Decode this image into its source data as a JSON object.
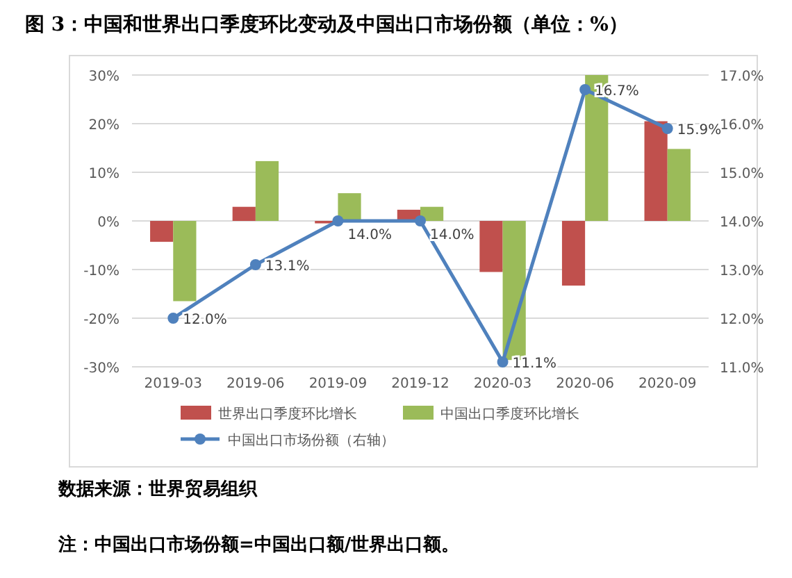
{
  "chart_data": {
    "type": "bar",
    "title": "图 3：中国和世界出口季度环比变动及中国出口市场份额（单位：%）",
    "categories": [
      "2019-03",
      "2019-06",
      "2019-09",
      "2019-12",
      "2020-03",
      "2020-06",
      "2020-09"
    ],
    "series": [
      {
        "name": "世界出口季度环比增长",
        "color": "#c0504d",
        "values": [
          -4.3,
          2.9,
          -0.5,
          2.3,
          -10.5,
          -13.3,
          20.5
        ]
      },
      {
        "name": "中国出口季度环比增长",
        "color": "#9bbb59",
        "values": [
          -16.5,
          12.3,
          5.7,
          2.9,
          -28.6,
          30,
          14.8
        ]
      },
      {
        "name": "中国出口市场份额（右轴）",
        "type": "line",
        "axis": "y2",
        "color": "#4f81bd",
        "marker": "circle",
        "values": [
          12.0,
          13.1,
          14.0,
          14.0,
          11.1,
          16.7,
          15.9
        ],
        "value_labels": [
          "12.0%",
          "13.1%",
          "14.0%",
          "14.0%",
          "11.1%",
          "16.7%",
          "15.9%"
        ]
      }
    ],
    "ylim": [
      -30,
      30
    ],
    "yticks": [
      {
        "value": -30,
        "label": "-30%"
      },
      {
        "value": -20,
        "label": "-20%"
      },
      {
        "value": -10,
        "label": "-10%"
      },
      {
        "value": 0,
        "label": "0%"
      },
      {
        "value": 10,
        "label": "10%"
      },
      {
        "value": 20,
        "label": "20%"
      },
      {
        "value": 30,
        "label": "30%"
      }
    ],
    "y2lim": [
      11,
      17
    ],
    "y2ticks": [
      {
        "value": 11,
        "label": "11.0%"
      },
      {
        "value": 12,
        "label": "12.0%"
      },
      {
        "value": 13,
        "label": "13.0%"
      },
      {
        "value": 14,
        "label": "14.0%"
      },
      {
        "value": 15,
        "label": "15.0%"
      },
      {
        "value": 16,
        "label": "16.0%"
      },
      {
        "value": 17,
        "label": "17.0%"
      }
    ],
    "grid": "y",
    "legend": "bottom",
    "annotations": [
      "数据来源：世界贸易组织",
      "注：中国出口市场份额=中国出口额/世界出口额。"
    ]
  }
}
